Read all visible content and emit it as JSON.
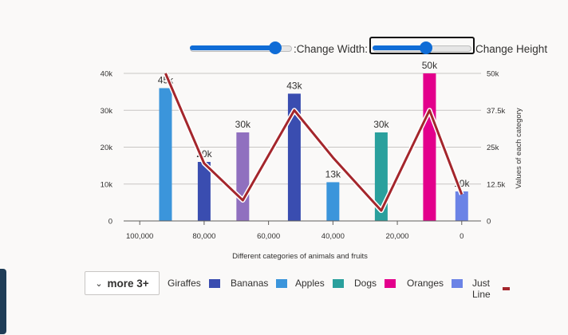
{
  "controls": {
    "width_label": ":Change Width:",
    "height_label": "Change Height",
    "width_value": 0.88,
    "height_value": 0.55
  },
  "chart_data": {
    "type": "bar",
    "xlabel": "Different categories of animals and fruits",
    "ylabel": "",
    "y2label": "Values of each category",
    "x_axis_reversed": true,
    "xlim": [
      105000,
      -6000
    ],
    "x_ticks": [
      100000,
      80000,
      60000,
      40000,
      20000,
      0
    ],
    "x_tick_labels": [
      "100,000",
      "80,000",
      "60,000",
      "40,000",
      "20,000",
      "0"
    ],
    "ylim": [
      0,
      40000
    ],
    "y_ticks": [
      0,
      10000,
      20000,
      30000,
      40000
    ],
    "y_tick_labels": [
      "0",
      "10k",
      "20k",
      "30k",
      "40k"
    ],
    "y2lim": [
      0,
      50000
    ],
    "y2_ticks": [
      0,
      12500,
      25000,
      37500,
      50000
    ],
    "y2_tick_labels": [
      "0",
      "12.5k",
      "25k",
      "37.5k",
      "50k"
    ],
    "grid": true,
    "legend_position": "bottom",
    "bars": [
      {
        "x": 92000,
        "value": 36000,
        "label": "45k",
        "color": "#3b95db"
      },
      {
        "x": 80000,
        "value": 16000,
        "label": "20k",
        "color": "#3a4db0"
      },
      {
        "x": 68000,
        "value": 24000,
        "label": "30k",
        "color": "#9070bf"
      },
      {
        "x": 52000,
        "value": 34500,
        "label": "43k",
        "color": "#3a4db0"
      },
      {
        "x": 40000,
        "value": 10500,
        "label": "13k",
        "color": "#3b95db"
      },
      {
        "x": 25000,
        "value": 24000,
        "label": "30k",
        "color": "#2aa09d"
      },
      {
        "x": 10000,
        "value": 40000,
        "label": "50k",
        "color": "#e3008c"
      },
      {
        "x": 0,
        "value": 8000,
        "label": "10k",
        "color": "#6b83e6"
      }
    ],
    "line": {
      "name": "Just Line",
      "color": "#a4262c",
      "points": [
        [
          92000,
          50000
        ],
        [
          80000,
          19500
        ],
        [
          68000,
          7000
        ],
        [
          52000,
          37500
        ],
        [
          40000,
          21500
        ],
        [
          25000,
          3500
        ],
        [
          10000,
          37500
        ],
        [
          0,
          9000
        ]
      ]
    },
    "legend": [
      {
        "label": "Giraffes",
        "color": "#3a4db0",
        "kind": "bar"
      },
      {
        "label": "Bananas",
        "color": "#3b95db",
        "kind": "bar"
      },
      {
        "label": "Apples",
        "color": "#2aa09d",
        "kind": "bar"
      },
      {
        "label": "Dogs",
        "color": "#e3008c",
        "kind": "bar"
      },
      {
        "label": "Oranges",
        "color": "#6b83e6",
        "kind": "bar"
      },
      {
        "label": "Just Line",
        "color": "#a4262c",
        "kind": "line"
      }
    ],
    "more_button": "more 3+"
  }
}
